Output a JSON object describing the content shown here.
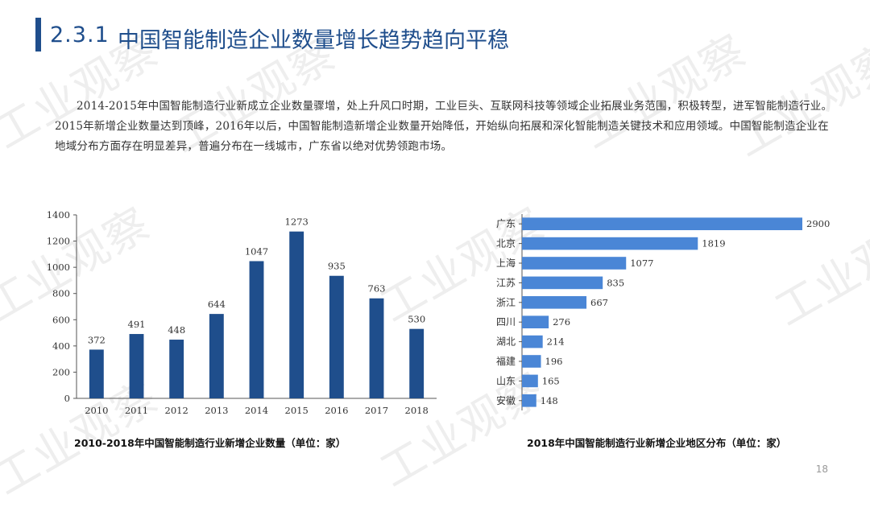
{
  "header": {
    "section_number": "2.3.1",
    "title": "中国智能制造企业数量增长趋势趋向平稳"
  },
  "body": {
    "paragraph": "2014-2015年中国智能制造行业新成立企业数量骤增，处上升风口时期，工业巨头、互联网科技等领域企业拓展业务范围，积极转型，进军智能制造行业。2015年新增企业数量达到顶峰，2016年以后，中国智能制造新增企业数量开始降低，开始纵向拓展和深化智能制造关键技术和应用领域。中国智能制造企业在地域分布方面存在明显差异，普遍分布在一线城市，广东省以绝对优势领跑市场。"
  },
  "watermark": "工业观察",
  "page_number": "18",
  "colors": {
    "bar_dark": "#1f4e8c",
    "bar_light": "#4a86d6",
    "title": "#1f4e8c"
  },
  "chart_data": [
    {
      "type": "bar",
      "caption": "2010-2018年中国智能制造行业新增企业数量（单位：家）",
      "categories": [
        "2010",
        "2011",
        "2012",
        "2013",
        "2014",
        "2015",
        "2016",
        "2017",
        "2018"
      ],
      "values": [
        372,
        491,
        448,
        644,
        1047,
        1273,
        935,
        763,
        530
      ],
      "yticks": [
        "0",
        "200",
        "400",
        "600",
        "800",
        "1000",
        "1200",
        "1400"
      ],
      "ylim": [
        0,
        1400
      ],
      "grid": false
    },
    {
      "type": "bar",
      "orientation": "horizontal",
      "caption": "2018年中国智能制造行业新增企业地区分布（单位：家）",
      "categories": [
        "广东",
        "北京",
        "上海",
        "江苏",
        "浙江",
        "四川",
        "湖北",
        "福建",
        "山东",
        "安徽"
      ],
      "values": [
        2900,
        1819,
        1077,
        835,
        667,
        276,
        214,
        196,
        165,
        148
      ],
      "xlim": [
        0,
        3100
      ],
      "grid": false
    }
  ]
}
